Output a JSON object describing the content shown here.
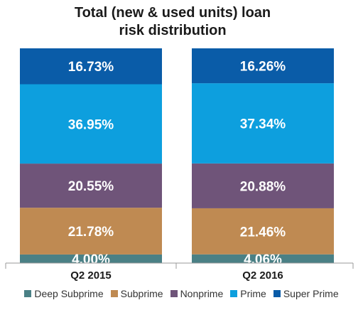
{
  "chart_data": {
    "type": "bar",
    "stacked": true,
    "title_line1": "Total (new & used units) loan",
    "title_line2": "risk distribution",
    "categories": [
      "Q2 2015",
      "Q2 2016"
    ],
    "ylim": [
      0,
      100
    ],
    "legend_position": "bottom",
    "grid": false,
    "series": [
      {
        "name": "Deep Subprime",
        "color": "#4a8085",
        "values": [
          4.0,
          4.06
        ],
        "labels": [
          "4.00%",
          "4.06%"
        ]
      },
      {
        "name": "Subprime",
        "color": "#bf8a52",
        "values": [
          21.78,
          21.46
        ],
        "labels": [
          "21.78%",
          "21.46%"
        ]
      },
      {
        "name": "Nonprime",
        "color": "#6f5479",
        "values": [
          20.55,
          20.88
        ],
        "labels": [
          "20.55%",
          "20.88%"
        ]
      },
      {
        "name": "Prime",
        "color": "#0d9fde",
        "values": [
          36.95,
          37.34
        ],
        "labels": [
          "36.95%",
          "37.34%"
        ]
      },
      {
        "name": "Super Prime",
        "color": "#0a5ca8",
        "values": [
          16.73,
          16.26
        ],
        "labels": [
          "16.73%",
          "16.26%"
        ]
      }
    ]
  }
}
